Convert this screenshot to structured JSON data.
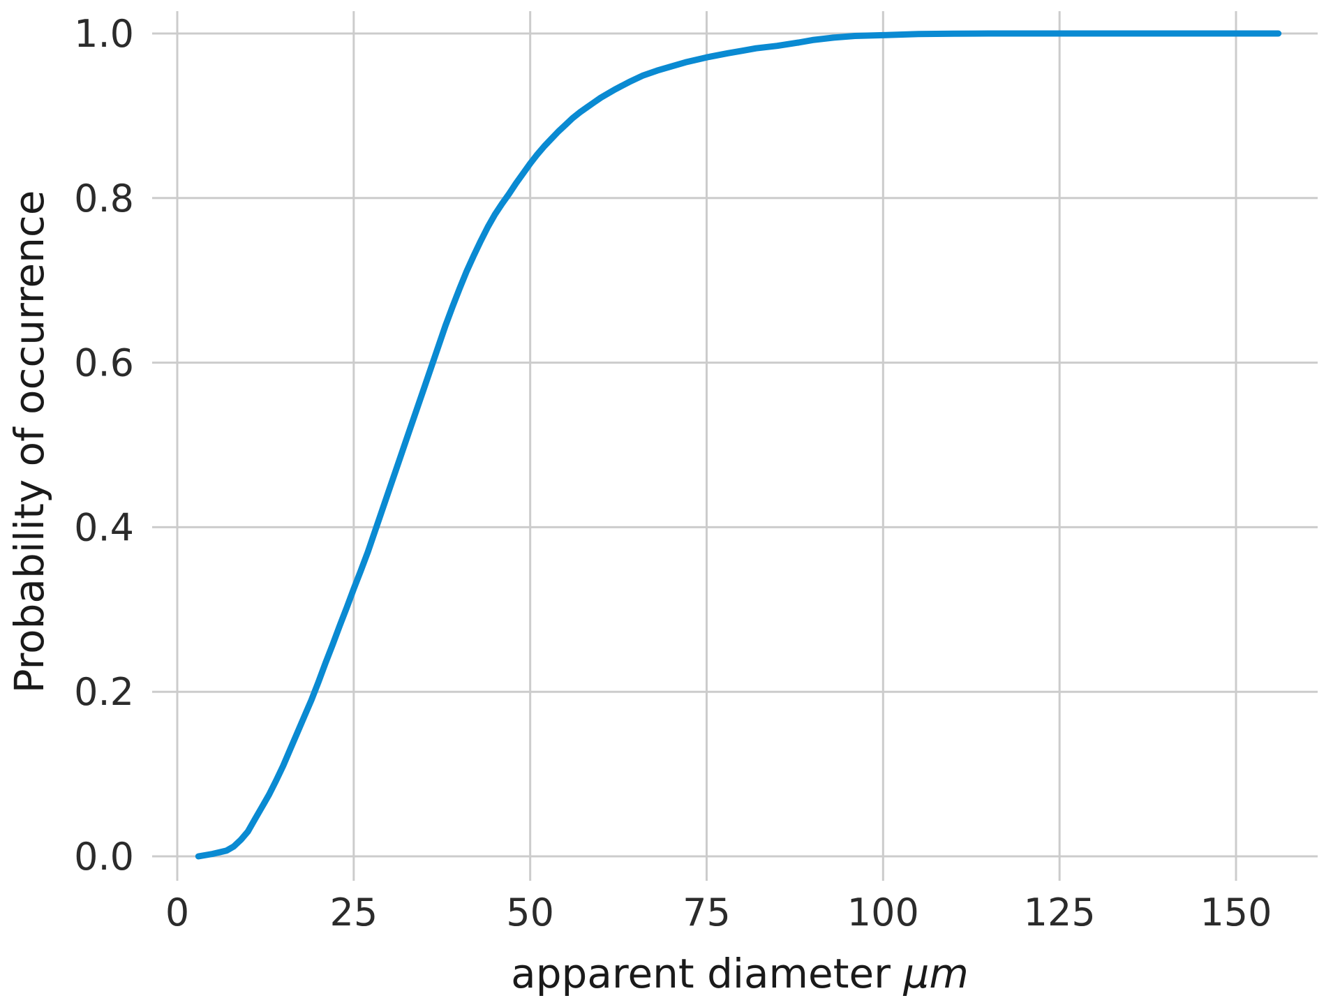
{
  "chart_data": {
    "type": "line",
    "title": "",
    "xlabel": "apparent diameter",
    "xlabel_unit": "μm",
    "ylabel": "Probability of occurrence",
    "xlim": [
      -4,
      163
    ],
    "ylim": [
      -0.05,
      1.03
    ],
    "xticks": [
      "0",
      "25",
      "50",
      "75",
      "100",
      "125",
      "150"
    ],
    "yticks": [
      "0.0",
      "0.2",
      "0.4",
      "0.6",
      "0.8",
      "1.0"
    ],
    "xtick_values": [
      0,
      25,
      50,
      75,
      100,
      125,
      150
    ],
    "ytick_values": [
      0.0,
      0.2,
      0.4,
      0.6,
      0.8,
      1.0
    ],
    "grid": true,
    "legend": "none",
    "series": [
      {
        "color": "#0a8ad2",
        "x": [
          3,
          5,
          7,
          8,
          9,
          10,
          11,
          12,
          13,
          14,
          15,
          16,
          17,
          18,
          19,
          20,
          21,
          22,
          23,
          24,
          25,
          26,
          27,
          28,
          29,
          30,
          31,
          32,
          33,
          34,
          35,
          36,
          37,
          38,
          39,
          40,
          41,
          42,
          43,
          44,
          45,
          46,
          47,
          48,
          49,
          50,
          51,
          52,
          53,
          54,
          55,
          56,
          57,
          58,
          59,
          60,
          62,
          64,
          66,
          68,
          70,
          72,
          75,
          78,
          80,
          82,
          85,
          88,
          90,
          93,
          96,
          100,
          105,
          110,
          115,
          120,
          130,
          140,
          150,
          156
        ],
        "y": [
          0.0,
          0.003,
          0.007,
          0.012,
          0.02,
          0.03,
          0.045,
          0.06,
          0.075,
          0.092,
          0.11,
          0.13,
          0.15,
          0.17,
          0.19,
          0.212,
          0.235,
          0.257,
          0.28,
          0.302,
          0.325,
          0.347,
          0.37,
          0.395,
          0.42,
          0.445,
          0.47,
          0.495,
          0.52,
          0.545,
          0.57,
          0.595,
          0.62,
          0.645,
          0.668,
          0.69,
          0.711,
          0.73,
          0.748,
          0.765,
          0.78,
          0.793,
          0.805,
          0.818,
          0.83,
          0.842,
          0.853,
          0.863,
          0.872,
          0.881,
          0.889,
          0.897,
          0.904,
          0.91,
          0.916,
          0.922,
          0.932,
          0.941,
          0.949,
          0.955,
          0.96,
          0.965,
          0.971,
          0.976,
          0.979,
          0.982,
          0.985,
          0.989,
          0.992,
          0.995,
          0.997,
          0.998,
          0.9993,
          0.9998,
          1.0,
          1.0,
          1.0,
          1.0,
          1.0,
          1.0
        ]
      }
    ]
  }
}
